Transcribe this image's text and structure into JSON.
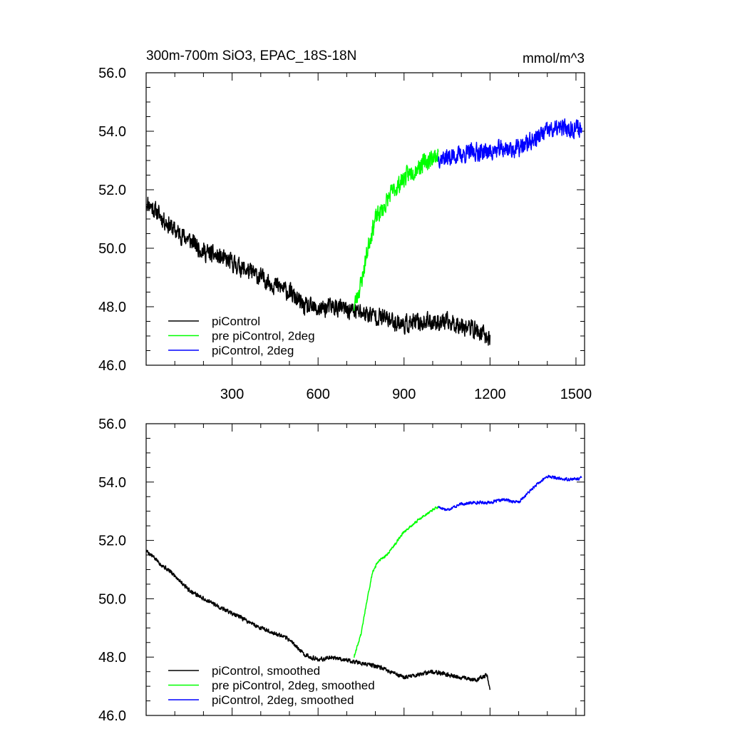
{
  "chart_data": [
    {
      "type": "line",
      "title": "300m-700m SiO3, EPAC_18S-18N",
      "units": "mmol/m^3",
      "xlim": [
        0,
        1530
      ],
      "ylim": [
        46.0,
        56.0
      ],
      "xticks": [
        300,
        600,
        900,
        1200,
        1500
      ],
      "yticks": [
        46.0,
        48.0,
        50.0,
        52.0,
        54.0,
        56.0
      ],
      "ytick_labels": [
        "46.0",
        "48.0",
        "50.0",
        "52.0",
        "54.0",
        "56.0"
      ],
      "xtick_labels": [
        "300",
        "600",
        "900",
        "1200",
        "1500"
      ],
      "legend_position": "bottom-left",
      "series": [
        {
          "name": "piControl",
          "color": "#000000",
          "noise": 0.42,
          "seed": 11,
          "x": [
            1,
            50,
            100,
            150,
            200,
            300,
            400,
            500,
            550,
            600,
            650,
            700,
            800,
            900,
            1000,
            1100,
            1150,
            1200
          ],
          "y": [
            51.6,
            51.1,
            50.6,
            50.3,
            49.9,
            49.5,
            49.0,
            48.5,
            48.0,
            47.9,
            48.0,
            47.9,
            47.7,
            47.4,
            47.5,
            47.4,
            47.2,
            46.9
          ]
        },
        {
          "name": "pre piControl, 2deg",
          "color": "#00ff00",
          "noise": 0.42,
          "seed": 23,
          "x": [
            725,
            750,
            780,
            800,
            830,
            850,
            900,
            950,
            1000,
            1020
          ],
          "y": [
            48.0,
            48.8,
            50.3,
            51.0,
            51.4,
            51.8,
            52.4,
            52.8,
            53.1,
            53.2
          ]
        },
        {
          "name": "piControl, 2deg",
          "color": "#0000ff",
          "noise": 0.42,
          "seed": 37,
          "x": [
            1020,
            1050,
            1100,
            1150,
            1200,
            1250,
            1300,
            1350,
            1400,
            1450,
            1500,
            1520
          ],
          "y": [
            53.1,
            53.1,
            53.2,
            53.3,
            53.3,
            53.4,
            53.4,
            53.7,
            54.0,
            54.1,
            54.1,
            54.1
          ]
        }
      ]
    },
    {
      "type": "line",
      "title": "",
      "xlim": [
        0,
        1530
      ],
      "ylim": [
        46.0,
        56.0
      ],
      "xticks": [
        300,
        600,
        900,
        1200,
        1500
      ],
      "yticks": [
        46.0,
        48.0,
        50.0,
        52.0,
        54.0,
        56.0
      ],
      "ytick_labels": [
        "46.0",
        "48.0",
        "50.0",
        "52.0",
        "54.0",
        "56.0"
      ],
      "legend_position": "bottom-left",
      "series": [
        {
          "name": "piControl, smoothed",
          "color": "#000000",
          "noise": 0.1,
          "seed": 5,
          "x": [
            1,
            50,
            100,
            150,
            200,
            300,
            400,
            500,
            550,
            600,
            650,
            700,
            800,
            900,
            1000,
            1100,
            1150,
            1190,
            1200
          ],
          "y": [
            51.65,
            51.2,
            50.8,
            50.3,
            50.0,
            49.5,
            49.0,
            48.6,
            48.1,
            47.9,
            48.0,
            47.9,
            47.7,
            47.3,
            47.5,
            47.3,
            47.2,
            47.4,
            46.9
          ]
        },
        {
          "name": "pre piControl, 2deg, smoothed",
          "color": "#00ff00",
          "noise": 0.06,
          "seed": 9,
          "x": [
            725,
            750,
            770,
            790,
            810,
            840,
            870,
            900,
            950,
            1000,
            1020
          ],
          "y": [
            48.0,
            48.8,
            49.9,
            50.9,
            51.3,
            51.5,
            51.9,
            52.3,
            52.7,
            53.05,
            53.15
          ]
        },
        {
          "name": "piControl, 2deg, smoothed",
          "color": "#0000ff",
          "noise": 0.07,
          "seed": 17,
          "x": [
            1020,
            1050,
            1100,
            1150,
            1200,
            1250,
            1300,
            1350,
            1400,
            1450,
            1500,
            1520
          ],
          "y": [
            53.15,
            53.05,
            53.25,
            53.3,
            53.3,
            53.4,
            53.3,
            53.8,
            54.2,
            54.1,
            54.1,
            54.15
          ]
        }
      ]
    }
  ]
}
